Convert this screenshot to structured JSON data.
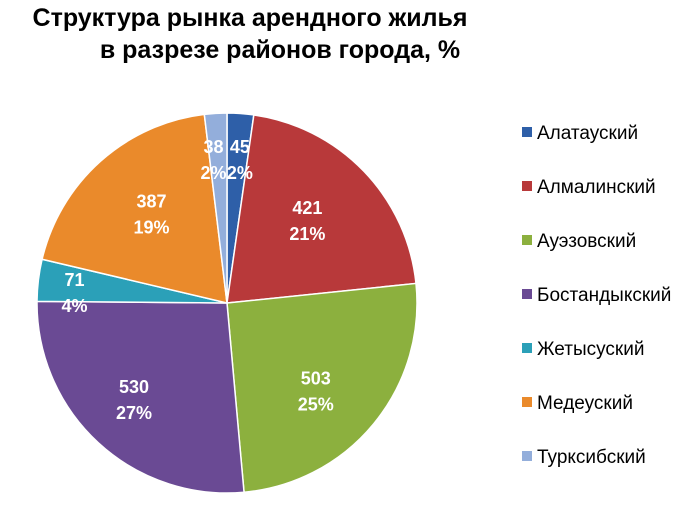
{
  "chart_data": {
    "type": "pie",
    "title": [
      "Структура рынка арендного жилья",
      "в разрезе районов города, %"
    ],
    "categories": [
      "Алатауский",
      "Алмалинский",
      "Ауэзовский",
      "Бостандыкский",
      "Жетысуский",
      "Медеуский",
      "Турксибский"
    ],
    "values": [
      45,
      421,
      503,
      530,
      71,
      387,
      38
    ],
    "percent_labels": [
      "2%",
      "21%",
      "25%",
      "27%",
      "4%",
      "19%",
      "2%"
    ],
    "colors": [
      "#2e5fa8",
      "#b8393a",
      "#8cb03e",
      "#6a4a94",
      "#2ba0b8",
      "#ea8a2b",
      "#93aedb"
    ],
    "legend_position": "right"
  }
}
